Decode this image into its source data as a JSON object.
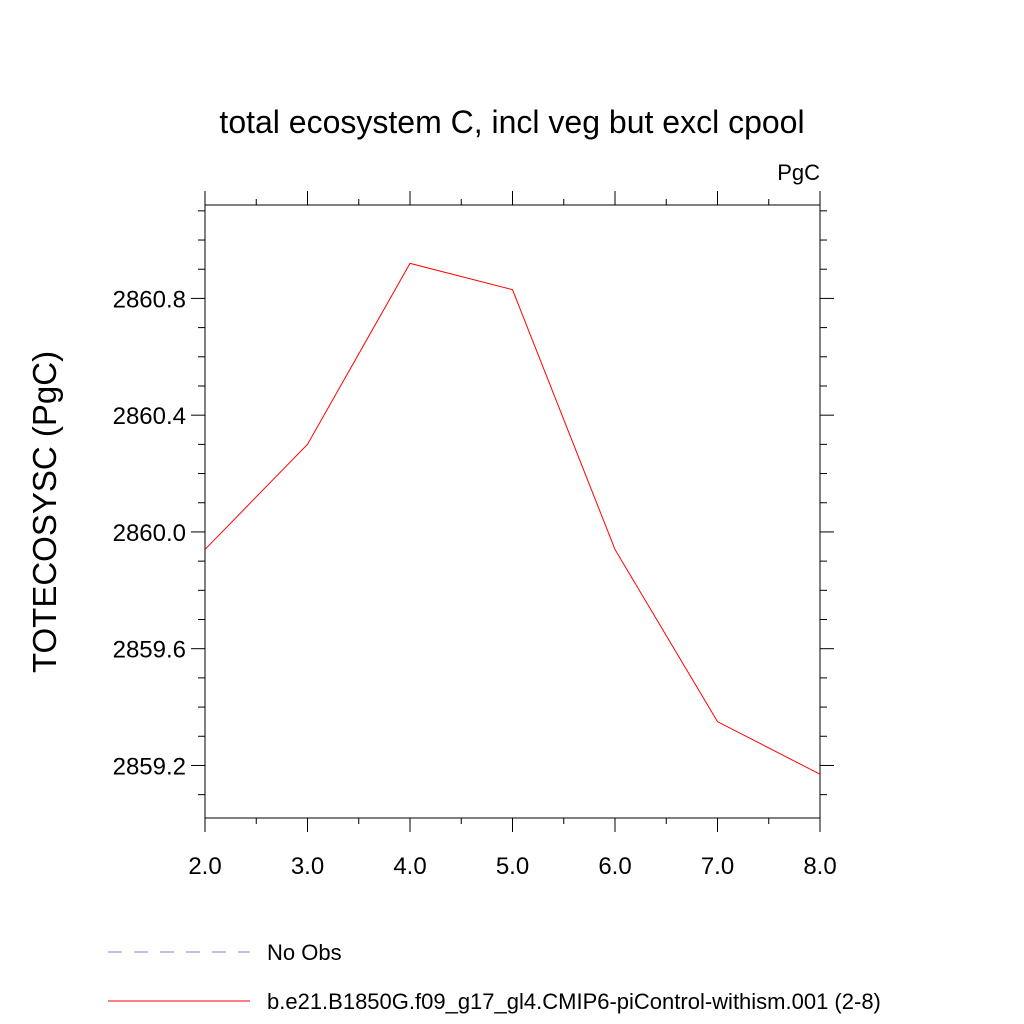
{
  "chart_data": {
    "type": "line",
    "title": "total ecosystem C, incl veg but excl cpool",
    "units_label": "PgC",
    "xlabel": "",
    "ylabel": "TOTECOSYSC  (PgC)",
    "xlim": [
      2.0,
      8.0
    ],
    "ylim": [
      2859.02,
      2861.12
    ],
    "x_ticks": [
      "2.0",
      "3.0",
      "4.0",
      "5.0",
      "6.0",
      "7.0",
      "8.0"
    ],
    "x_tick_values": [
      2,
      3,
      4,
      5,
      6,
      7,
      8
    ],
    "y_ticks": [
      "2859.2",
      "2859.6",
      "2860.0",
      "2860.4",
      "2860.8"
    ],
    "y_tick_values": [
      2859.2,
      2859.6,
      2860.0,
      2860.4,
      2860.8
    ],
    "y_minor_step": 0.1,
    "x_minor_step": 0.5,
    "grid": false,
    "series": [
      {
        "name": "b.e21.B1850G.f09_g17_gl4.CMIP6-piControl-withism.001 (2-8)",
        "color": "#ff0000",
        "x": [
          2,
          3,
          4,
          5,
          6,
          7,
          8
        ],
        "values": [
          2859.94,
          2860.3,
          2860.92,
          2860.83,
          2859.94,
          2859.35,
          2859.17
        ]
      }
    ],
    "legend": [
      {
        "label": "No Obs",
        "color": "#8a7fc0",
        "style": "dashed"
      },
      {
        "label": "b.e21.B1850G.f09_g17_gl4.CMIP6-piControl-withism.001 (2-8)",
        "color": "#ff0000",
        "style": "solid"
      }
    ],
    "legend_placement": "bottom"
  }
}
